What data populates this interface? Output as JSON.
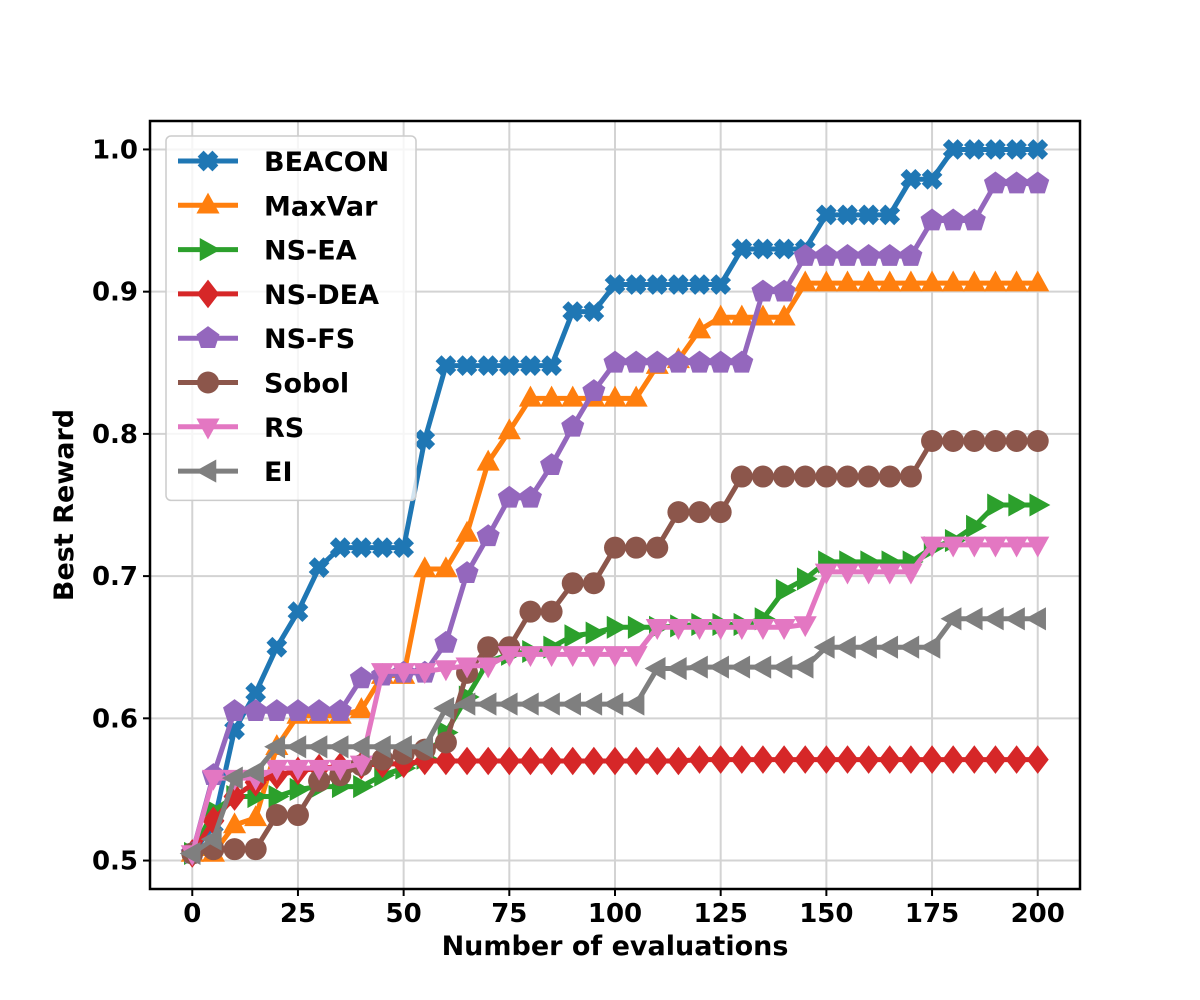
{
  "chart_data": {
    "type": "line",
    "title": "",
    "xlabel": "Number of evaluations",
    "ylabel": "Best Reward",
    "xlim": [
      -10,
      210
    ],
    "ylim": [
      0.48,
      1.02
    ],
    "xticks": [
      0,
      25,
      50,
      75,
      100,
      125,
      150,
      175,
      200
    ],
    "yticks": [
      0.5,
      0.6,
      0.7,
      0.8,
      0.9,
      1.0
    ],
    "xtick_labels": [
      "0",
      "25",
      "50",
      "75",
      "100",
      "125",
      "150",
      "175",
      "200"
    ],
    "ytick_labels": [
      "0.5",
      "0.6",
      "0.7",
      "0.8",
      "0.9",
      "1.0"
    ],
    "grid": true,
    "legend_position": "upper-left",
    "x": [
      0,
      5,
      10,
      15,
      20,
      25,
      30,
      35,
      40,
      45,
      50,
      55,
      60,
      65,
      70,
      75,
      80,
      85,
      90,
      95,
      100,
      105,
      110,
      115,
      120,
      125,
      130,
      135,
      140,
      145,
      150,
      155,
      160,
      165,
      170,
      175,
      180,
      185,
      190,
      195,
      200
    ],
    "series": [
      {
        "name": "BEACON",
        "color": "#1f77b4",
        "marker": "x",
        "values": [
          0.505,
          0.525,
          0.592,
          0.618,
          0.65,
          0.675,
          0.706,
          0.72,
          0.72,
          0.72,
          0.72,
          0.796,
          0.848,
          0.848,
          0.848,
          0.848,
          0.848,
          0.848,
          0.886,
          0.886,
          0.905,
          0.905,
          0.905,
          0.905,
          0.905,
          0.905,
          0.93,
          0.93,
          0.93,
          0.93,
          0.954,
          0.954,
          0.954,
          0.954,
          0.979,
          0.979,
          1.0,
          1.0,
          1.0,
          1.0,
          1.0
        ]
      },
      {
        "name": "MaxVar",
        "color": "#ff7f0e",
        "marker": "triangle-up",
        "values": [
          0.505,
          0.505,
          0.525,
          0.53,
          0.58,
          0.602,
          0.602,
          0.602,
          0.606,
          0.63,
          0.63,
          0.705,
          0.705,
          0.73,
          0.78,
          0.802,
          0.825,
          0.825,
          0.825,
          0.825,
          0.825,
          0.825,
          0.848,
          0.852,
          0.873,
          0.882,
          0.882,
          0.882,
          0.882,
          0.906,
          0.906,
          0.906,
          0.906,
          0.906,
          0.906,
          0.906,
          0.906,
          0.906,
          0.906,
          0.906,
          0.906
        ]
      },
      {
        "name": "NS-EA",
        "color": "#2ca02c",
        "marker": "triangle-right",
        "values": [
          0.505,
          0.535,
          0.545,
          0.545,
          0.545,
          0.55,
          0.552,
          0.552,
          0.552,
          0.56,
          0.565,
          0.572,
          0.59,
          0.615,
          0.64,
          0.645,
          0.647,
          0.65,
          0.658,
          0.66,
          0.664,
          0.664,
          0.664,
          0.665,
          0.666,
          0.666,
          0.666,
          0.67,
          0.69,
          0.698,
          0.71,
          0.71,
          0.71,
          0.71,
          0.71,
          0.72,
          0.725,
          0.735,
          0.75,
          0.75,
          0.75
        ]
      },
      {
        "name": "NS-DEA",
        "color": "#d62728",
        "marker": "diamond",
        "values": [
          0.505,
          0.528,
          0.545,
          0.555,
          0.56,
          0.563,
          0.565,
          0.566,
          0.567,
          0.568,
          0.568,
          0.57,
          0.57,
          0.57,
          0.57,
          0.57,
          0.57,
          0.57,
          0.57,
          0.57,
          0.57,
          0.57,
          0.57,
          0.57,
          0.571,
          0.571,
          0.571,
          0.571,
          0.571,
          0.571,
          0.571,
          0.571,
          0.571,
          0.571,
          0.571,
          0.571,
          0.571,
          0.571,
          0.571,
          0.571,
          0.571
        ]
      },
      {
        "name": "NS-FS",
        "color": "#9467bd",
        "marker": "pentagon",
        "values": [
          0.505,
          0.56,
          0.605,
          0.605,
          0.605,
          0.605,
          0.605,
          0.605,
          0.628,
          0.63,
          0.632,
          0.632,
          0.653,
          0.702,
          0.728,
          0.755,
          0.755,
          0.778,
          0.805,
          0.83,
          0.85,
          0.85,
          0.85,
          0.85,
          0.85,
          0.85,
          0.85,
          0.9,
          0.9,
          0.925,
          0.925,
          0.925,
          0.925,
          0.925,
          0.925,
          0.95,
          0.95,
          0.95,
          0.976,
          0.976,
          0.976
        ]
      },
      {
        "name": "Sobol",
        "color": "#8c564b",
        "marker": "circle",
        "values": [
          0.505,
          0.508,
          0.508,
          0.508,
          0.532,
          0.532,
          0.556,
          0.56,
          0.567,
          0.571,
          0.575,
          0.578,
          0.583,
          0.632,
          0.65,
          0.65,
          0.675,
          0.675,
          0.695,
          0.695,
          0.72,
          0.72,
          0.72,
          0.745,
          0.745,
          0.745,
          0.77,
          0.77,
          0.77,
          0.77,
          0.77,
          0.77,
          0.77,
          0.77,
          0.77,
          0.795,
          0.795,
          0.795,
          0.795,
          0.795,
          0.795
        ]
      },
      {
        "name": "RS",
        "color": "#e377c2",
        "marker": "triangle-down",
        "values": [
          0.505,
          0.558,
          0.558,
          0.558,
          0.565,
          0.565,
          0.565,
          0.565,
          0.568,
          0.633,
          0.633,
          0.633,
          0.635,
          0.637,
          0.637,
          0.645,
          0.645,
          0.645,
          0.645,
          0.645,
          0.645,
          0.645,
          0.664,
          0.664,
          0.664,
          0.664,
          0.664,
          0.664,
          0.664,
          0.666,
          0.703,
          0.703,
          0.703,
          0.703,
          0.703,
          0.722,
          0.722,
          0.722,
          0.722,
          0.722,
          0.722
        ]
      },
      {
        "name": "EI",
        "color": "#7f7f7f",
        "marker": "triangle-left",
        "values": [
          0.505,
          0.515,
          0.558,
          0.562,
          0.58,
          0.58,
          0.58,
          0.58,
          0.58,
          0.58,
          0.58,
          0.58,
          0.607,
          0.61,
          0.61,
          0.61,
          0.61,
          0.61,
          0.61,
          0.61,
          0.61,
          0.61,
          0.635,
          0.635,
          0.636,
          0.636,
          0.636,
          0.636,
          0.636,
          0.636,
          0.65,
          0.65,
          0.65,
          0.65,
          0.65,
          0.65,
          0.67,
          0.67,
          0.67,
          0.67,
          0.67
        ]
      }
    ]
  }
}
